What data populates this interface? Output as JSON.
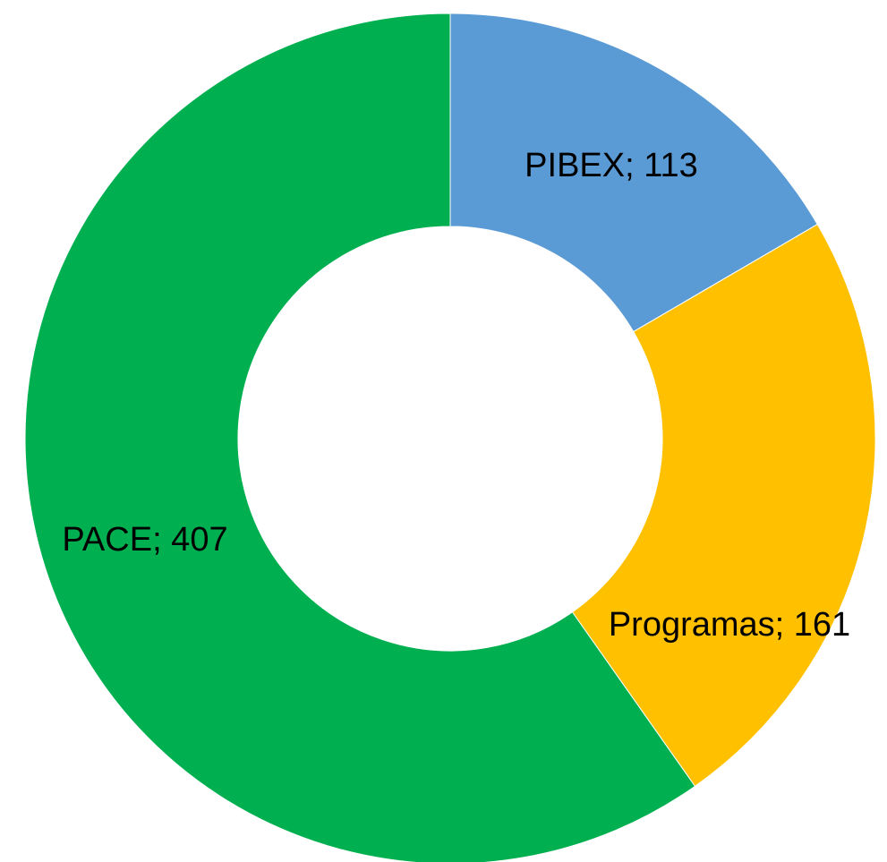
{
  "chart_data": {
    "type": "donut",
    "categories": [
      "PIBEX",
      "Programas",
      "PACE"
    ],
    "values": [
      113,
      161,
      407
    ],
    "value_labels": [
      "PIBEX; 113",
      "Programas; 161",
      "PACE; 407"
    ],
    "colors": [
      "#5b9bd5",
      "#ffc000",
      "#00b050"
    ]
  }
}
